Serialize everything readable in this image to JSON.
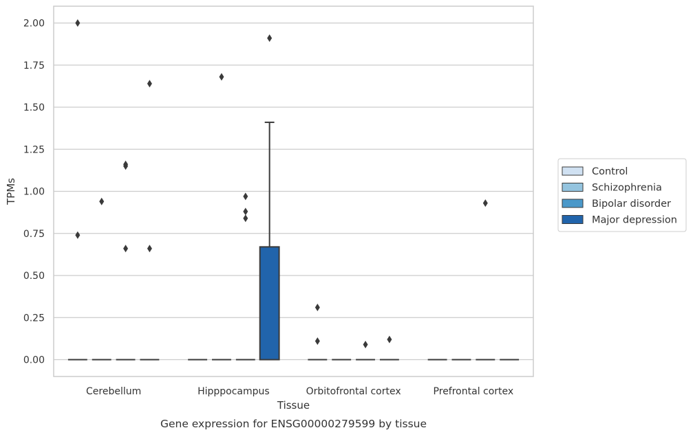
{
  "chart_data": {
    "type": "box",
    "caption": "Gene expression for ENSG00000279599 by tissue",
    "xlabel": "Tissue",
    "ylabel": "TPMs",
    "ylim": [
      -0.1,
      2.1
    ],
    "yticks": [
      0.0,
      0.25,
      0.5,
      0.75,
      1.0,
      1.25,
      1.5,
      1.75,
      2.0
    ],
    "ytick_labels": [
      "0.00",
      "0.25",
      "0.50",
      "0.75",
      "1.00",
      "1.25",
      "1.50",
      "1.75",
      "2.00"
    ],
    "grid": true,
    "legend_position": "right",
    "categories": [
      "Cerebellum",
      "Hipppocampus",
      "Orbitofrontal cortex",
      "Prefrontal cortex"
    ],
    "series": [
      {
        "name": "Control",
        "color": "#d0e1f2",
        "boxes": [
          {
            "q1": 0,
            "median": 0,
            "q3": 0,
            "whisker_low": 0,
            "whisker_high": 0,
            "outliers": [
              2.0,
              0.74
            ]
          },
          {
            "q1": 0,
            "median": 0,
            "q3": 0,
            "whisker_low": 0,
            "whisker_high": 0,
            "outliers": []
          },
          {
            "q1": 0,
            "median": 0,
            "q3": 0,
            "whisker_low": 0,
            "whisker_high": 0,
            "outliers": [
              0.31,
              0.11
            ]
          },
          {
            "q1": 0,
            "median": 0,
            "q3": 0,
            "whisker_low": 0,
            "whisker_high": 0,
            "outliers": []
          }
        ]
      },
      {
        "name": "Schizophrenia",
        "color": "#94c4df",
        "boxes": [
          {
            "q1": 0,
            "median": 0,
            "q3": 0,
            "whisker_low": 0,
            "whisker_high": 0,
            "outliers": [
              0.94
            ]
          },
          {
            "q1": 0,
            "median": 0,
            "q3": 0,
            "whisker_low": 0,
            "whisker_high": 0,
            "outliers": [
              1.68
            ]
          },
          {
            "q1": 0,
            "median": 0,
            "q3": 0,
            "whisker_low": 0,
            "whisker_high": 0,
            "outliers": []
          },
          {
            "q1": 0,
            "median": 0,
            "q3": 0,
            "whisker_low": 0,
            "whisker_high": 0,
            "outliers": []
          }
        ]
      },
      {
        "name": "Bipolar disorder",
        "color": "#4a98c9",
        "boxes": [
          {
            "q1": 0,
            "median": 0,
            "q3": 0,
            "whisker_low": 0,
            "whisker_high": 0,
            "outliers": [
              1.16,
              1.15,
              0.66
            ]
          },
          {
            "q1": 0,
            "median": 0,
            "q3": 0,
            "whisker_low": 0,
            "whisker_high": 0,
            "outliers": [
              0.97,
              0.88,
              0.84
            ]
          },
          {
            "q1": 0,
            "median": 0,
            "q3": 0,
            "whisker_low": 0,
            "whisker_high": 0,
            "outliers": [
              0.09
            ]
          },
          {
            "q1": 0,
            "median": 0,
            "q3": 0,
            "whisker_low": 0,
            "whisker_high": 0,
            "outliers": [
              0.93
            ]
          }
        ]
      },
      {
        "name": "Major depression",
        "color": "#2164ab",
        "boxes": [
          {
            "q1": 0,
            "median": 0,
            "q3": 0,
            "whisker_low": 0,
            "whisker_high": 0,
            "outliers": [
              1.64,
              0.66
            ]
          },
          {
            "q1": 0,
            "median": 0,
            "q3": 0.67,
            "whisker_low": 0,
            "whisker_high": 1.41,
            "outliers": [
              1.91
            ]
          },
          {
            "q1": 0,
            "median": 0,
            "q3": 0,
            "whisker_low": 0,
            "whisker_high": 0,
            "outliers": [
              0.12
            ]
          },
          {
            "q1": 0,
            "median": 0,
            "q3": 0,
            "whisker_low": 0,
            "whisker_high": 0,
            "outliers": []
          }
        ]
      }
    ]
  }
}
